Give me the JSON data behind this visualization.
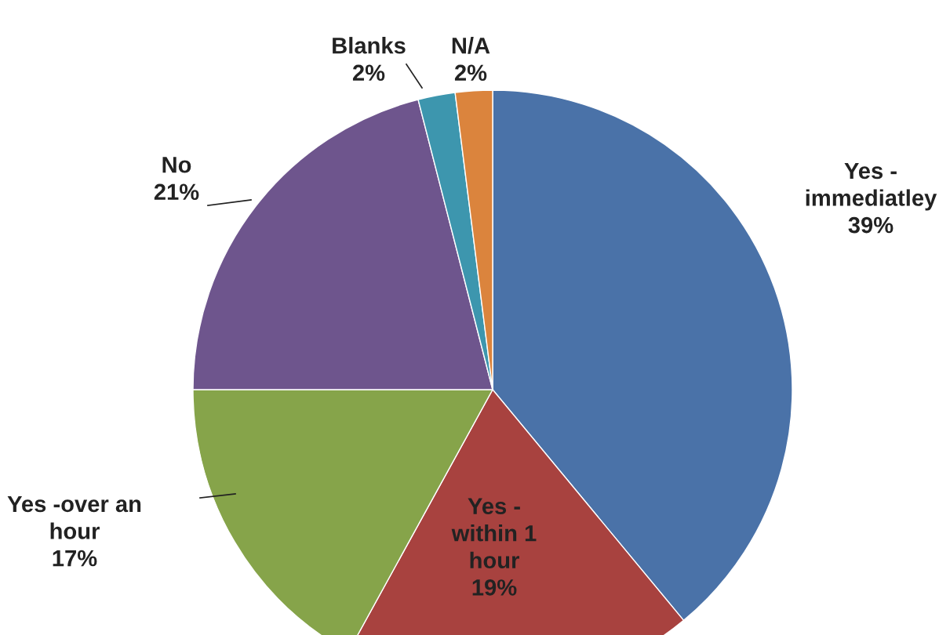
{
  "chart_data": {
    "type": "pie",
    "categories": [
      "Yes -\nimmediatley",
      "Yes -\nwithin 1\nhour",
      "Yes -over an\nhour",
      "No",
      "Blanks",
      "N/A"
    ],
    "values": [
      39,
      19,
      17,
      21,
      2,
      2
    ],
    "colors": [
      "#4a72a8",
      "#a8423f",
      "#86a44a",
      "#6e558d",
      "#3d96ae",
      "#db843d"
    ],
    "value_labels": [
      "39%",
      "19%",
      "17%",
      "21%",
      "2%",
      "2%"
    ]
  }
}
